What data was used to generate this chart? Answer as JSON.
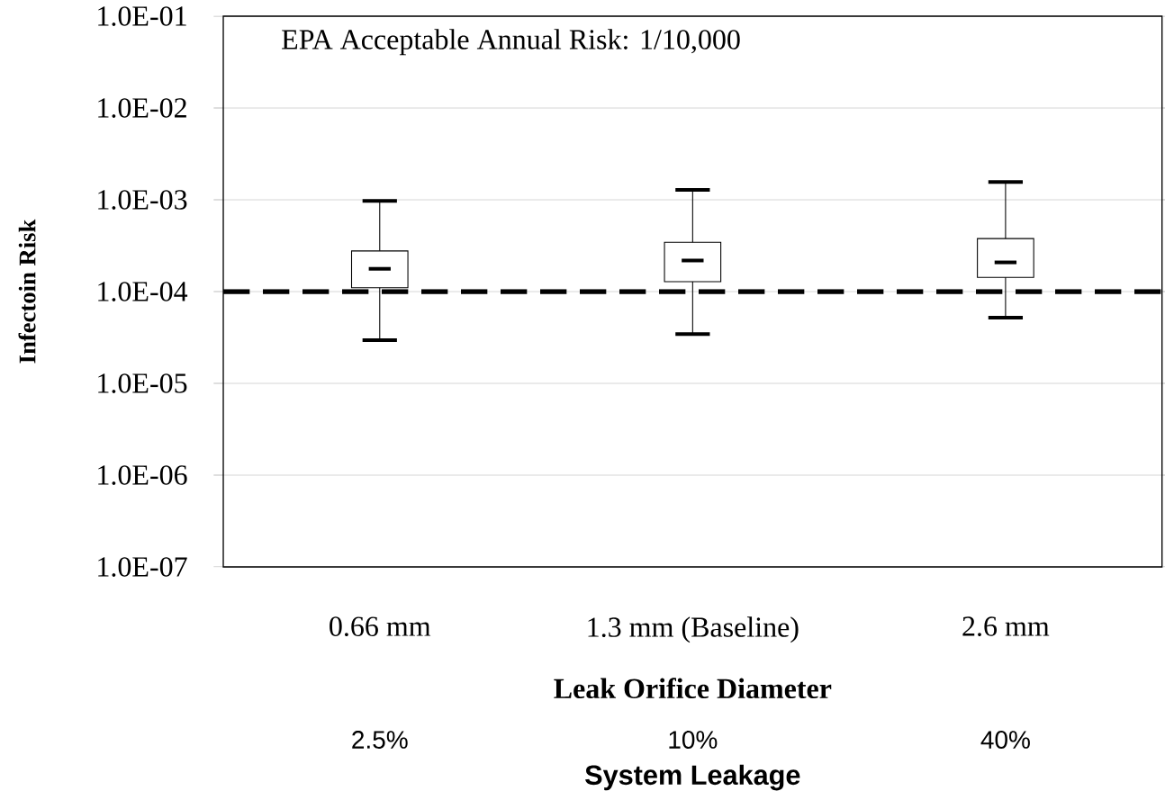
{
  "chart_data": {
    "type": "box",
    "ylabel": "Infectoin Risk",
    "xlabel": "Leak Orifice Diameter",
    "categories": [
      "0.66 mm",
      "1.3 mm  (Baseline)",
      "2.6 mm"
    ],
    "boxes": [
      {
        "low": 2.96e-05,
        "q1": 0.00011,
        "median": 0.000177,
        "q3": 0.000277,
        "high": 0.00097
      },
      {
        "low": 3.45e-05,
        "q1": 0.000128,
        "median": 0.000218,
        "q3": 0.000344,
        "high": 0.00128
      },
      {
        "low": 5.2e-05,
        "q1": 0.000143,
        "median": 0.000208,
        "q3": 0.000378,
        "high": 0.00156
      }
    ],
    "color": "#000000",
    "log": true,
    "ylim": [
      1e-07,
      0.1
    ],
    "yticks": [
      {
        "value": 1e-07,
        "label": "1.0E-07"
      },
      {
        "value": 1e-06,
        "label": "1.0E-06"
      },
      {
        "value": 1e-05,
        "label": "1.0E-05"
      },
      {
        "value": 0.0001,
        "label": "1.0E-04"
      },
      {
        "value": 0.001,
        "label": "1.0E-03"
      },
      {
        "value": 0.01,
        "label": "1.0E-02"
      },
      {
        "value": 0.1,
        "label": "1.0E-01"
      }
    ],
    "grid": "y",
    "ref_lines": [
      {
        "axis": "y",
        "value": 0.0001,
        "color": "#000000",
        "line_style": "dashed"
      }
    ],
    "annotations": [
      "EPA Acceptable Annual Risk: 1/10,000",
      "2.5%",
      "10%",
      "40%",
      "System Leakage"
    ]
  }
}
